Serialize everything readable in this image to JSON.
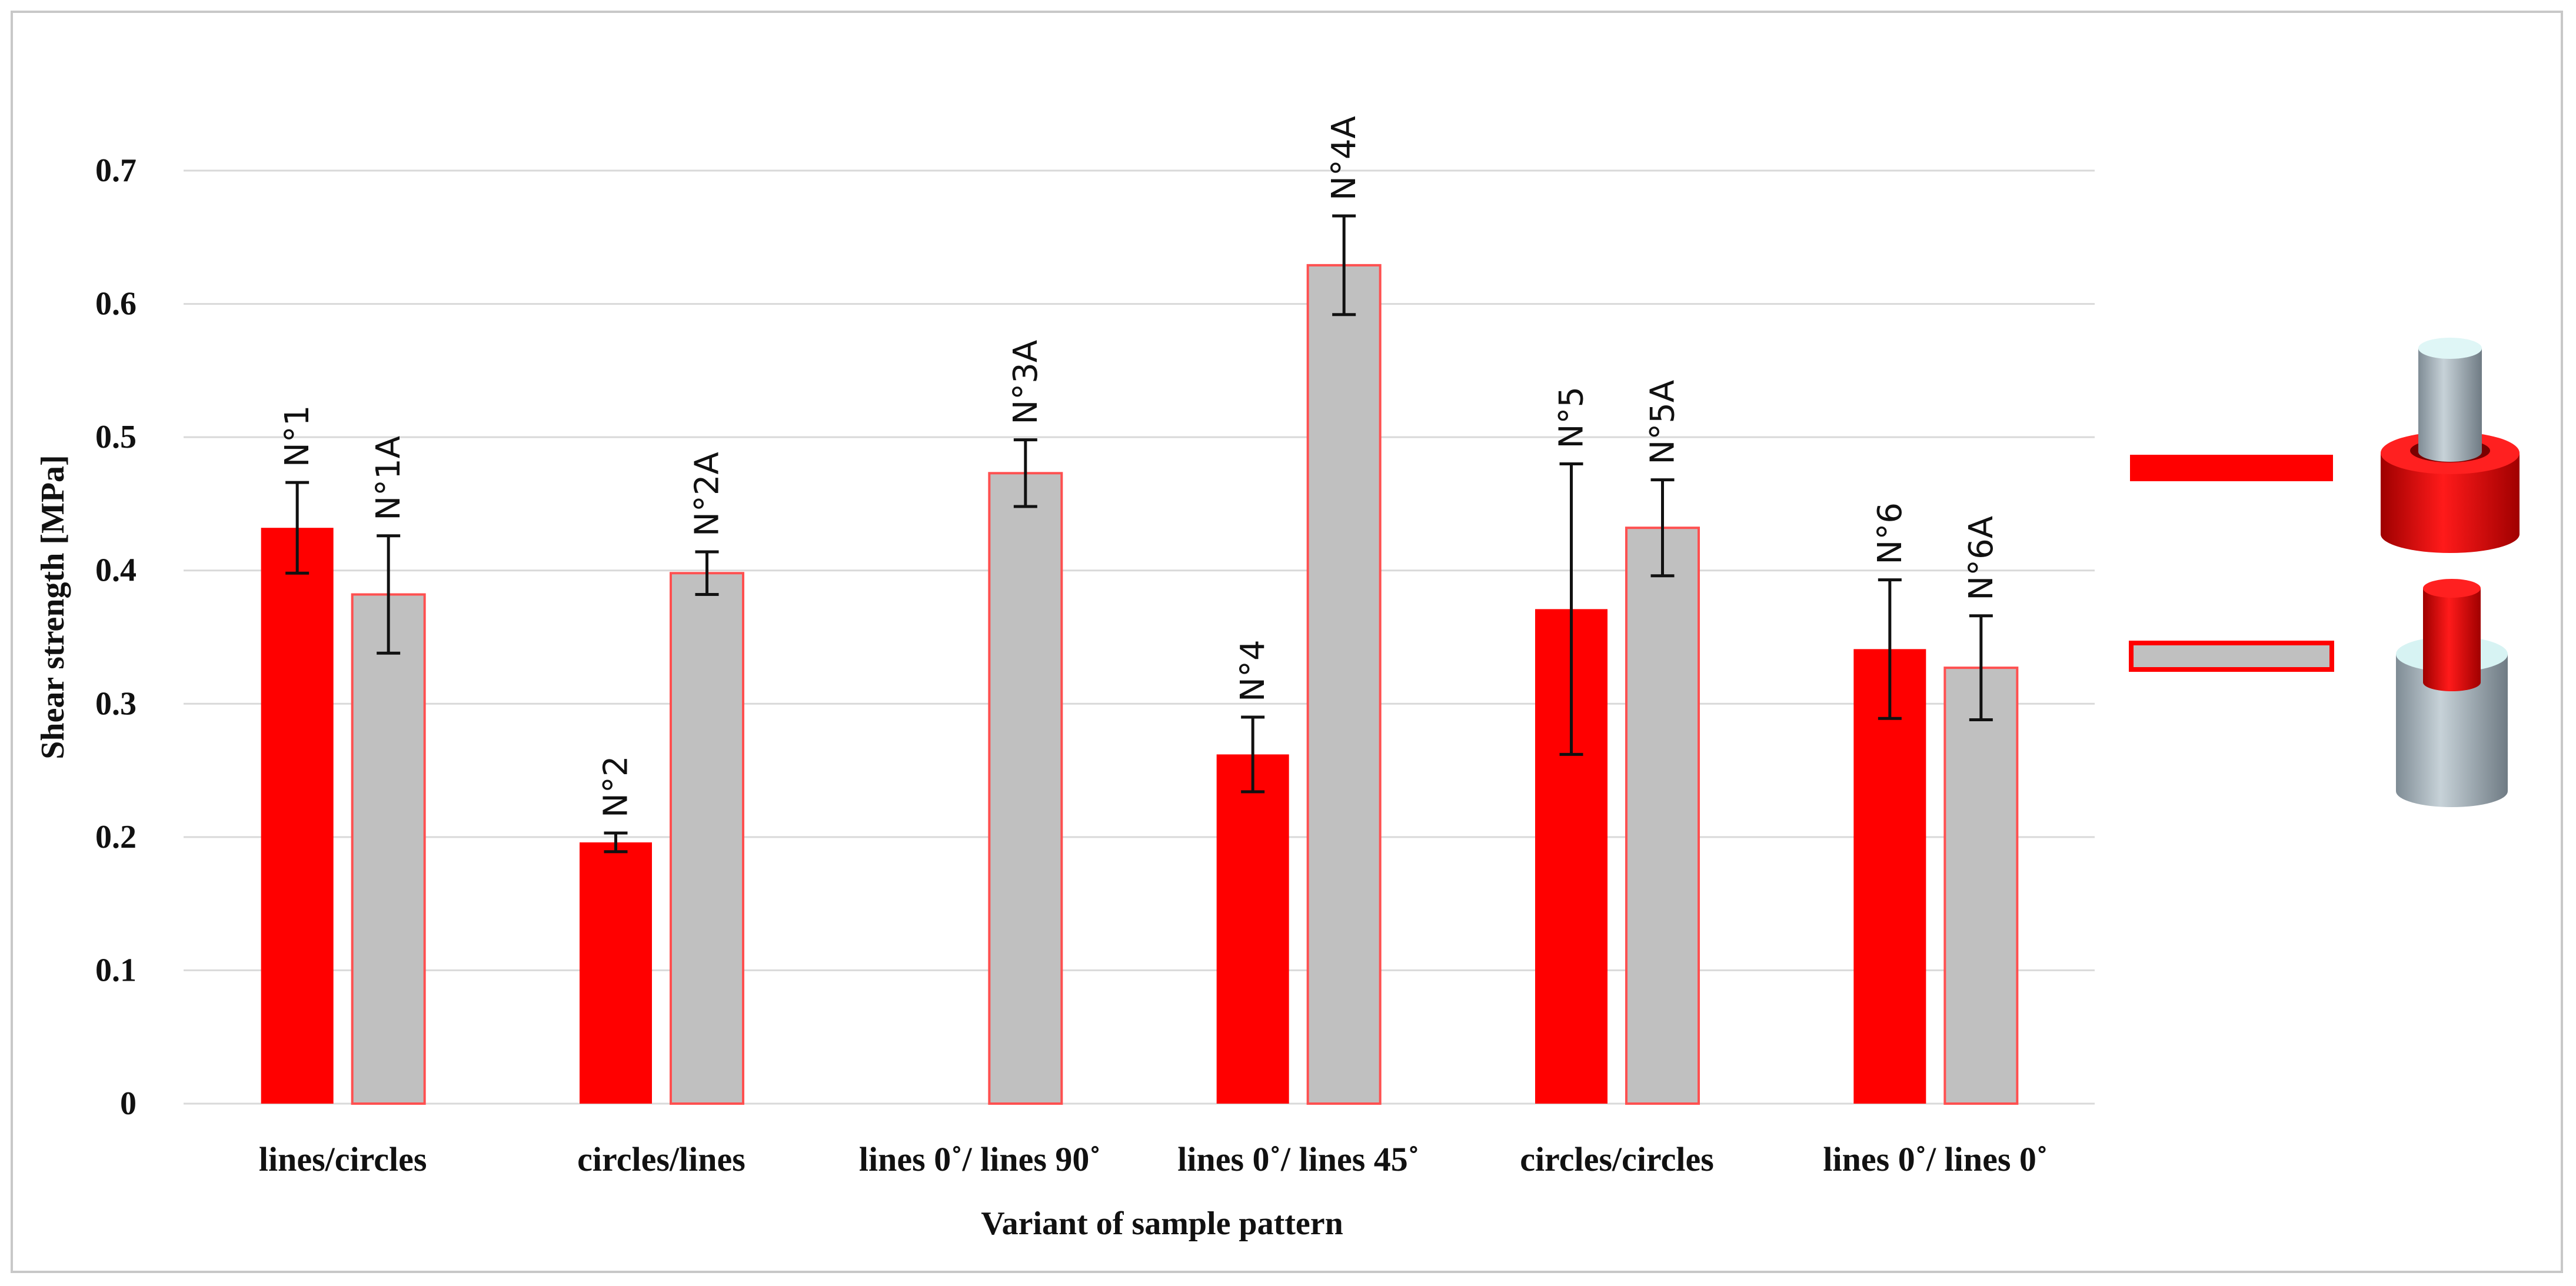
{
  "chart_data": {
    "type": "bar",
    "title": "",
    "xlabel": "Variant of sample pattern",
    "ylabel": "Shear strength [MPa]",
    "ylim": [
      0,
      0.7
    ],
    "yticks": [
      "0",
      "0.1",
      "0.2",
      "0.3",
      "0.4",
      "0.5",
      "0.6",
      "0.7"
    ],
    "grid": true,
    "categories": [
      "lines/circles",
      "circles/lines",
      "lines 0˚/ lines 90˚",
      "lines 0˚/ lines 45˚",
      "circles/circles",
      "lines 0˚/ lines 0˚"
    ],
    "series": [
      {
        "color": "#ff0000",
        "labels": [
          "N°1",
          "N°2",
          "",
          "N°4",
          "N°5",
          "N°6"
        ],
        "values": [
          0.432,
          0.196,
          null,
          0.262,
          0.371,
          0.341
        ],
        "errors": [
          0.034,
          0.007,
          null,
          0.028,
          0.109,
          0.052
        ]
      },
      {
        "color": "#c0c0c0",
        "edge_color": "#ff5050",
        "labels": [
          "N°1A",
          "N°2A",
          "N°3A",
          "N°4A",
          "N°5A",
          "N°6A"
        ],
        "values": [
          0.382,
          0.398,
          0.473,
          0.629,
          0.432,
          0.327
        ],
        "errors": [
          0.044,
          0.016,
          0.025,
          0.037,
          0.036,
          0.039
        ]
      }
    ],
    "legend": {
      "placement": "right",
      "items": [
        {
          "series": 0,
          "icon": "gray-cylinder-in-red-ring-icon"
        },
        {
          "series": 1,
          "icon": "red-cylinder-in-gray-ring-icon"
        }
      ]
    }
  }
}
